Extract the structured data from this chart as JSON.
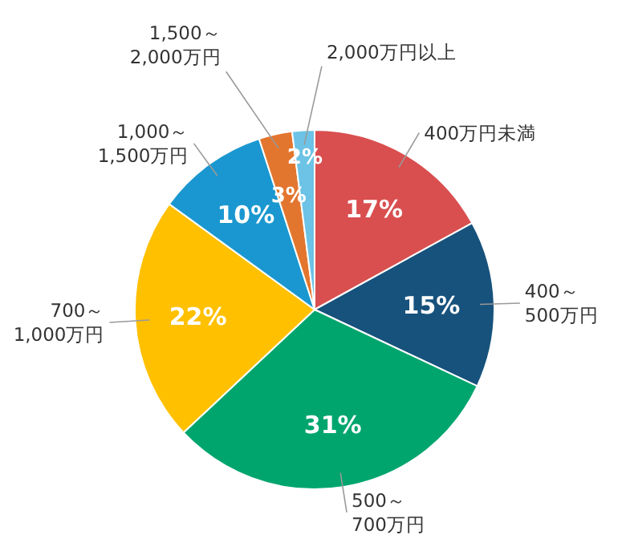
{
  "chart_data": {
    "type": "pie",
    "categories": [
      "400万円未満",
      "400～\n500万円",
      "500～\n700万円",
      "700～\n1,000万円",
      "1,000～\n1,500万円",
      "1,500～\n2,000万円",
      "2,000万円以上"
    ],
    "values": [
      17,
      15,
      31,
      22,
      10,
      3,
      2
    ],
    "colors": [
      "#d94f4f",
      "#17527c",
      "#00a56e",
      "#ffc000",
      "#1a97d0",
      "#e3762e",
      "#6cc3e6"
    ],
    "value_labels": [
      "17%",
      "15%",
      "31%",
      "22%",
      "10%",
      "3%",
      "2%"
    ]
  }
}
